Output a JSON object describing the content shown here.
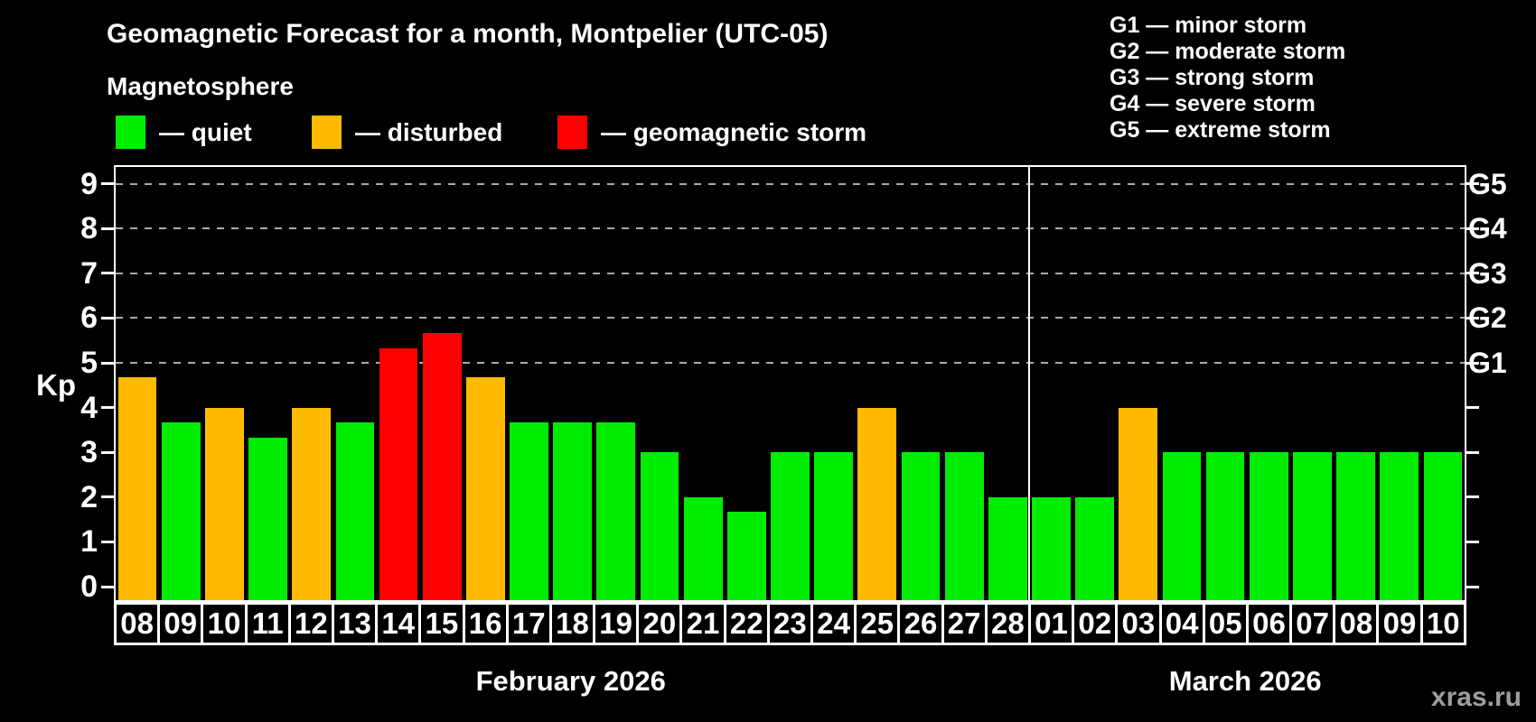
{
  "title": "Geomagnetic Forecast for a month, Montpelier (UTC-05)",
  "subtitle": "Magnetosphere",
  "legend": {
    "items": [
      {
        "key": "quiet",
        "label": "— quiet"
      },
      {
        "key": "disturbed",
        "label": "— disturbed"
      },
      {
        "key": "storm",
        "label": "— geomagnetic storm"
      }
    ]
  },
  "colors": {
    "quiet": "#00ec00",
    "disturbed": "#fdba00",
    "storm": "#ff0000",
    "grid": "#aaaaaa",
    "axis": "#ffffff",
    "watermark": "#9e9e9e",
    "background": "#000000"
  },
  "storm_scale": [
    {
      "code": "G1",
      "label": "— minor storm",
      "kp": 5
    },
    {
      "code": "G2",
      "label": "— moderate storm",
      "kp": 6
    },
    {
      "code": "G3",
      "label": "— strong storm",
      "kp": 7
    },
    {
      "code": "G4",
      "label": "— severe storm",
      "kp": 8
    },
    {
      "code": "G5",
      "label": "— extreme storm",
      "kp": 9
    }
  ],
  "axis": {
    "y_label": "Kp",
    "y_ticks": [
      0,
      1,
      2,
      3,
      4,
      5,
      6,
      7,
      8,
      9
    ]
  },
  "months": [
    {
      "label": "February 2026",
      "days": 21
    },
    {
      "label": "March 2026",
      "days": 10
    }
  ],
  "watermark": "xras.ru",
  "chart_data": {
    "type": "bar",
    "title": "Geomagnetic Forecast for a month, Montpelier (UTC-05)",
    "xlabel": "",
    "ylabel": "Kp",
    "ylim": [
      0,
      9
    ],
    "grid": "dashed horizontal at Kp 5-9 (G1-G5 levels)",
    "grid_levels": [
      5,
      6,
      7,
      8,
      9
    ],
    "categories": [
      "08",
      "09",
      "10",
      "11",
      "12",
      "13",
      "14",
      "15",
      "16",
      "17",
      "18",
      "19",
      "20",
      "21",
      "22",
      "23",
      "24",
      "25",
      "26",
      "27",
      "28",
      "01",
      "02",
      "03",
      "04",
      "05",
      "06",
      "07",
      "08",
      "09",
      "10"
    ],
    "values": [
      4.67,
      3.67,
      4.0,
      3.33,
      4.0,
      3.67,
      5.33,
      5.67,
      4.67,
      3.67,
      3.67,
      3.67,
      3.0,
      2.0,
      1.67,
      3.0,
      3.0,
      4.0,
      3.0,
      3.0,
      2.0,
      2.0,
      2.0,
      4.0,
      3.0,
      3.0,
      3.0,
      3.0,
      3.0,
      3.0,
      3.0
    ],
    "statuses": [
      "disturbed",
      "quiet",
      "disturbed",
      "quiet",
      "disturbed",
      "quiet",
      "storm",
      "storm",
      "disturbed",
      "quiet",
      "quiet",
      "quiet",
      "quiet",
      "quiet",
      "quiet",
      "quiet",
      "quiet",
      "disturbed",
      "quiet",
      "quiet",
      "quiet",
      "quiet",
      "quiet",
      "disturbed",
      "quiet",
      "quiet",
      "quiet",
      "quiet",
      "quiet",
      "quiet",
      "quiet"
    ]
  }
}
